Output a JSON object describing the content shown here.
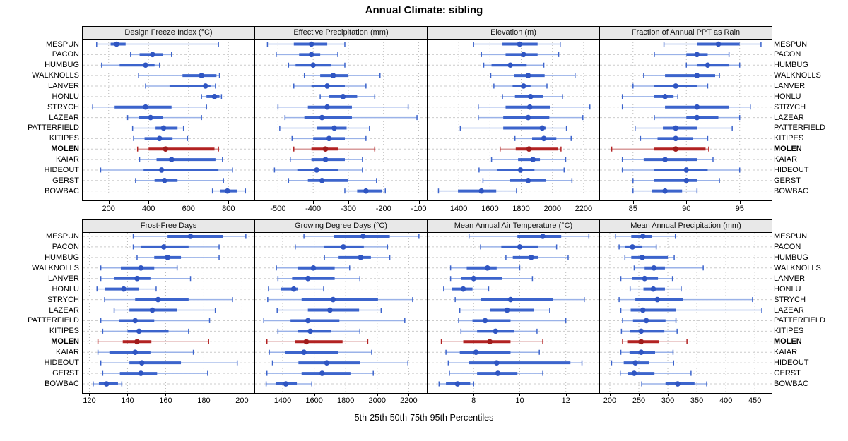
{
  "title": "Annual Climate: sibling",
  "footer": "5th-25th-50th-75th-95th Percentiles",
  "colors": {
    "blue": "#3c64cc",
    "blue_whisker": "#9ab2e8",
    "blue_dot": "#2f55c2",
    "red": "#b22222",
    "red_whisker": "#d89b9b",
    "red_dot": "#a01c1c",
    "gridline": "#bbbbbb",
    "row_guide": "#cccccc",
    "header_bg": "#e8e8e8"
  },
  "chart_data": {
    "type": "dotplot-intervals",
    "title": "Annual Climate: sibling",
    "footnote": "5th-25th-50th-75th-95th Percentiles",
    "legend_position": "none",
    "grid": "dotted-vertical-plus-dashed-row-guides",
    "categories": [
      "MESPUN",
      "PACON",
      "HUMBUG",
      "WALKNOLLS",
      "LANVER",
      "HONLU",
      "STRYCH",
      "LAZEAR",
      "PATTERFIELD",
      "KITIPES",
      "MOLEN",
      "KAIAR",
      "HIDEOUT",
      "GERST",
      "BOWBAC"
    ],
    "highlight": "MOLEN",
    "percentiles": [
      "5th",
      "25th",
      "50th",
      "75th",
      "95th"
    ],
    "panels": [
      {
        "title": "Design Freeze Index (°C)",
        "row": 0,
        "col": 0,
        "xlim": [
          70,
          930
        ],
        "ticks": [
          200,
          400,
          600,
          800
        ],
        "values": [
          [
            140,
            210,
            240,
            285,
            750
          ],
          [
            310,
            355,
            420,
            470,
            515
          ],
          [
            165,
            255,
            385,
            430,
            455
          ],
          [
            350,
            570,
            665,
            740,
            755
          ],
          [
            385,
            505,
            685,
            710,
            735
          ],
          [
            665,
            690,
            730,
            755,
            765
          ],
          [
            120,
            230,
            385,
            515,
            690
          ],
          [
            295,
            350,
            410,
            470,
            665
          ],
          [
            320,
            435,
            475,
            545,
            575
          ],
          [
            325,
            380,
            455,
            520,
            595
          ],
          [
            345,
            400,
            485,
            730,
            750
          ],
          [
            355,
            440,
            515,
            735,
            770
          ],
          [
            160,
            375,
            465,
            750,
            820
          ],
          [
            335,
            430,
            480,
            545,
            775
          ],
          [
            720,
            760,
            795,
            845,
            885
          ]
        ]
      },
      {
        "title": "Effective Precipitation (mm)",
        "row": 0,
        "col": 1,
        "xlim": [
          -565,
          -77
        ],
        "ticks": [
          -500,
          -400,
          -300,
          -200,
          -100
        ],
        "values": [
          [
            -530,
            -455,
            -405,
            -360,
            -310
          ],
          [
            -505,
            -440,
            -405,
            -380,
            -330
          ],
          [
            -470,
            -450,
            -400,
            -350,
            -310
          ],
          [
            -425,
            -380,
            -343,
            -300,
            -210
          ],
          [
            -455,
            -405,
            -360,
            -310,
            -250
          ],
          [
            -380,
            -355,
            -315,
            -275,
            -225
          ],
          [
            -500,
            -415,
            -360,
            -290,
            -130
          ],
          [
            -480,
            -425,
            -375,
            -290,
            -105
          ],
          [
            -495,
            -390,
            -340,
            -305,
            -240
          ],
          [
            -460,
            -400,
            -355,
            -310,
            -250
          ],
          [
            -455,
            -405,
            -365,
            -330,
            -225
          ],
          [
            -465,
            -405,
            -365,
            -310,
            -260
          ],
          [
            -510,
            -445,
            -390,
            -330,
            -260
          ],
          [
            -470,
            -415,
            -375,
            -300,
            -220
          ],
          [
            -310,
            -275,
            -250,
            -205,
            -195
          ]
        ]
      },
      {
        "title": "Elevation (m)",
        "row": 0,
        "col": 2,
        "xlim": [
          1200,
          2300
        ],
        "ticks": [
          1400,
          1600,
          1800,
          2000,
          2200
        ],
        "values": [
          [
            1495,
            1680,
            1790,
            1905,
            2050
          ],
          [
            1545,
            1700,
            1815,
            1905,
            2040
          ],
          [
            1560,
            1610,
            1730,
            1835,
            1945
          ],
          [
            1605,
            1755,
            1845,
            1950,
            2145
          ],
          [
            1625,
            1745,
            1815,
            1860,
            1965
          ],
          [
            1680,
            1760,
            1860,
            1940,
            2065
          ],
          [
            1525,
            1700,
            1855,
            1985,
            2240
          ],
          [
            1525,
            1685,
            1845,
            1980,
            2195
          ],
          [
            1410,
            1685,
            1935,
            1960,
            2090
          ],
          [
            1760,
            1870,
            1945,
            2025,
            2120
          ],
          [
            1665,
            1765,
            1850,
            2035,
            2055
          ],
          [
            1610,
            1780,
            1875,
            1920,
            2085
          ],
          [
            1530,
            1645,
            1795,
            1885,
            2075
          ],
          [
            1555,
            1725,
            1845,
            1960,
            2125
          ],
          [
            1270,
            1395,
            1545,
            1640,
            1770
          ]
        ]
      },
      {
        "title": "Fraction of Annual PPT as Rain",
        "row": 0,
        "col": 3,
        "xlim": [
          81.9,
          98
        ],
        "ticks": [
          85,
          90,
          95
        ],
        "values": [
          [
            87.9,
            91,
            93,
            95,
            97
          ],
          [
            87,
            90,
            91,
            92,
            94
          ],
          [
            90,
            91,
            92,
            94,
            95
          ],
          [
            86,
            88,
            91,
            92.7,
            93.1
          ],
          [
            85,
            87,
            89,
            91,
            92
          ],
          [
            84,
            87,
            88,
            88.8,
            89.2
          ],
          [
            84,
            88,
            91,
            94,
            96
          ],
          [
            87,
            90,
            91,
            93,
            95
          ],
          [
            85.2,
            87.8,
            89,
            91,
            94.3
          ],
          [
            85.7,
            87.3,
            89,
            90.6,
            92
          ],
          [
            83,
            87,
            89,
            91.8,
            92.1
          ],
          [
            84,
            86,
            88,
            91,
            92.5
          ],
          [
            84,
            87,
            90,
            92,
            95
          ],
          [
            85,
            87,
            90,
            91,
            93.1
          ],
          [
            85,
            86.8,
            88,
            89.6,
            91
          ]
        ]
      },
      {
        "title": "Frost-Free Days",
        "row": 1,
        "col": 0,
        "xlim": [
          116.5,
          206.5
        ],
        "ticks": [
          120,
          140,
          160,
          180,
          200
        ],
        "values": [
          [
            143,
            161,
            173,
            190,
            202
          ],
          [
            143,
            147,
            159,
            172,
            188
          ],
          [
            145,
            154,
            161,
            168,
            188
          ],
          [
            126,
            136.5,
            147,
            154,
            166
          ],
          [
            126,
            133,
            145,
            152,
            173
          ],
          [
            124,
            128,
            138,
            146,
            155
          ],
          [
            128,
            144,
            156,
            172,
            195
          ],
          [
            133,
            141,
            153,
            166,
            186
          ],
          [
            126,
            135.5,
            144,
            154,
            183
          ],
          [
            127,
            140,
            146,
            161.5,
            172
          ],
          [
            124.5,
            137.5,
            145,
            152.5,
            182.5
          ],
          [
            124.5,
            130.5,
            144,
            152,
            174.5
          ],
          [
            126,
            141,
            147.5,
            168,
            197.5
          ],
          [
            127,
            136,
            147,
            155.5,
            182
          ],
          [
            122,
            125,
            129,
            135,
            137
          ]
        ]
      },
      {
        "title": "Growing Degree Days (°C)",
        "row": 1,
        "col": 1,
        "xlim": [
          1225,
          2315
        ],
        "ticks": [
          1400,
          1600,
          1800,
          2000,
          2200
        ],
        "values": [
          [
            1535,
            1725,
            1910,
            2080,
            2265
          ],
          [
            1480,
            1660,
            1785,
            1915,
            2065
          ],
          [
            1665,
            1755,
            1895,
            1960,
            2080
          ],
          [
            1360,
            1495,
            1595,
            1730,
            1825
          ],
          [
            1370,
            1460,
            1560,
            1730,
            1890
          ],
          [
            1310,
            1390,
            1470,
            1495,
            1660
          ],
          [
            1305,
            1520,
            1720,
            2005,
            2225
          ],
          [
            1365,
            1560,
            1700,
            1885,
            2025
          ],
          [
            1280,
            1450,
            1560,
            1760,
            2175
          ],
          [
            1370,
            1495,
            1575,
            1705,
            1890
          ],
          [
            1300,
            1480,
            1550,
            1780,
            1940
          ],
          [
            1315,
            1415,
            1535,
            1750,
            1965
          ],
          [
            1335,
            1500,
            1680,
            1890,
            2195
          ],
          [
            1300,
            1520,
            1650,
            1830,
            1975
          ],
          [
            1295,
            1355,
            1420,
            1490,
            1585
          ]
        ]
      },
      {
        "title": "Mean Annual Air Temperature (°C)",
        "row": 1,
        "col": 2,
        "xlim": [
          6.0,
          13.45
        ],
        "ticks": [
          8,
          10,
          12
        ],
        "values": [
          [
            7.8,
            9.9,
            11,
            11.8,
            13
          ],
          [
            8.3,
            9.2,
            10,
            10.8,
            11.6
          ],
          [
            9.4,
            9.7,
            10.5,
            10.8,
            12.1
          ],
          [
            7,
            7.7,
            8.6,
            9,
            10
          ],
          [
            7,
            7.45,
            8,
            9.25,
            10.55
          ],
          [
            6.7,
            7.05,
            7.55,
            7.95,
            8.65
          ],
          [
            7.2,
            8.3,
            9.6,
            11.45,
            12.8
          ],
          [
            7.4,
            8.7,
            9.45,
            10.6,
            11.3
          ],
          [
            7.35,
            7.95,
            8.5,
            9.6,
            12
          ],
          [
            7.45,
            8.15,
            8.95,
            9.75,
            10.75
          ],
          [
            6.6,
            7.55,
            8.7,
            9.6,
            11
          ],
          [
            6.8,
            7.4,
            8.1,
            9.6,
            10.85
          ],
          [
            6.9,
            7.8,
            9,
            12.2,
            12.7
          ],
          [
            6.95,
            8.15,
            9.05,
            9.9,
            11
          ],
          [
            6.5,
            6.8,
            7.3,
            7.85,
            8
          ]
        ]
      },
      {
        "title": "Mean Annual Precipitation (mm)",
        "row": 1,
        "col": 3,
        "xlim": [
          183,
          479
        ],
        "ticks": [
          200,
          250,
          300,
          350,
          400,
          450
        ],
        "values": [
          [
            210,
            237,
            257,
            273,
            313
          ],
          [
            216,
            226,
            239,
            255,
            280
          ],
          [
            226,
            237,
            256,
            300,
            311
          ],
          [
            242,
            260,
            276,
            295,
            361
          ],
          [
            219,
            239,
            260,
            283,
            308
          ],
          [
            235,
            258,
            275,
            295,
            323
          ],
          [
            216,
            244,
            282,
            326,
            446
          ],
          [
            219,
            236,
            257,
            314,
            462
          ],
          [
            222,
            240,
            263,
            296,
            314
          ],
          [
            220,
            235,
            254,
            294,
            316
          ],
          [
            222,
            230,
            254,
            285,
            333
          ],
          [
            219,
            234,
            254,
            278,
            309
          ],
          [
            203,
            224,
            244,
            268,
            310
          ],
          [
            218,
            231,
            242,
            277,
            340
          ],
          [
            255,
            296,
            317,
            346,
            367
          ]
        ]
      }
    ]
  }
}
